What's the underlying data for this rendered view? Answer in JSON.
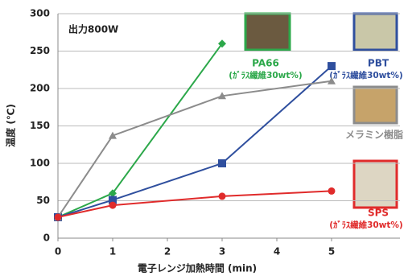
{
  "chart_data": {
    "type": "line",
    "x_label": "電子レンジ加熱時間 (min)",
    "y_label": "温度 (℃)",
    "annotation": "出力800W",
    "xlim": [
      0,
      6.25
    ],
    "xticks": [
      0,
      1,
      2,
      3,
      4,
      5
    ],
    "ylim": [
      0,
      300
    ],
    "yticks": [
      0,
      50,
      100,
      150,
      200,
      250,
      300
    ],
    "series": [
      {
        "name": "PA66",
        "sub": "(ｶﾞﾗｽ繊維30wt%)",
        "color": "#2ca84a",
        "marker": "diamond",
        "x": [
          0,
          1,
          3
        ],
        "values": [
          28,
          60,
          260
        ]
      },
      {
        "name": "PBT",
        "sub": "(ｶﾞﾗｽ繊維30wt%)",
        "color": "#2f4f9e",
        "marker": "square",
        "x": [
          0,
          1,
          3,
          5
        ],
        "values": [
          28,
          51,
          100,
          230
        ]
      },
      {
        "name": "メラミン樹脂",
        "color": "#8c8c8c",
        "marker": "triangle",
        "x": [
          0,
          1,
          3,
          5
        ],
        "values": [
          28,
          137,
          190,
          210
        ]
      },
      {
        "name": "SPS",
        "sub": "(ｶﾞﾗｽ繊維30wt%)",
        "color": "#e02b2b",
        "marker": "circle",
        "x": [
          0,
          1,
          3,
          5
        ],
        "values": [
          28,
          44,
          56,
          63
        ]
      }
    ]
  }
}
